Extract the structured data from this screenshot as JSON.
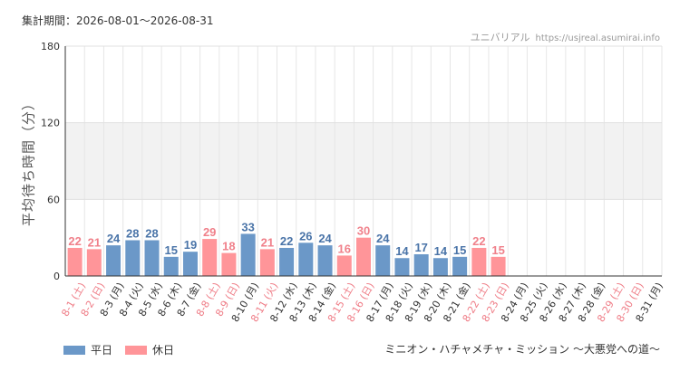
{
  "header": {
    "period_label": "集計期間：2026-08-01～2026-08-31",
    "site_name": "ユニバリアル",
    "site_url": "https://usjreal.asumirai.info"
  },
  "footer": {
    "movie_title": "ミニオン・ハチャメチャ・ミッション ～大悪党への道～"
  },
  "colors": {
    "weekday": "#6b98c8",
    "holiday": "#ff9599",
    "weekday_text": "#4a74a8",
    "holiday_text": "#f0808a",
    "weekday_tick": "#333333",
    "holiday_tick": "#ef7c86"
  },
  "chart_data": {
    "type": "bar",
    "ylabel": "平均待ち時間（分）",
    "ylim": [
      0,
      180
    ],
    "yticks": [
      0,
      60,
      120,
      180
    ],
    "grid": true,
    "shaded_bands": [
      [
        60,
        120
      ]
    ],
    "legend_position": "bottom-left",
    "categories": [
      "8-1 (土)",
      "8-2 (日)",
      "8-3 (月)",
      "8-4 (火)",
      "8-5 (水)",
      "8-6 (木)",
      "8-7 (金)",
      "8-8 (土)",
      "8-9 (日)",
      "8-10 (月)",
      "8-11 (火)",
      "8-12 (水)",
      "8-13 (木)",
      "8-14 (金)",
      "8-15 (土)",
      "8-16 (日)",
      "8-17 (月)",
      "8-18 (火)",
      "8-19 (水)",
      "8-20 (木)",
      "8-21 (金)",
      "8-22 (土)",
      "8-23 (日)",
      "8-24 (月)",
      "8-25 (火)",
      "8-26 (水)",
      "8-27 (木)",
      "8-28 (金)",
      "8-29 (土)",
      "8-30 (日)",
      "8-31 (月)"
    ],
    "values": [
      22,
      21,
      24,
      28,
      28,
      15,
      19,
      29,
      18,
      33,
      21,
      22,
      26,
      24,
      16,
      30,
      24,
      14,
      17,
      14,
      15,
      22,
      15,
      null,
      null,
      null,
      null,
      null,
      null,
      null,
      null
    ],
    "day_type": [
      "holiday",
      "holiday",
      "weekday",
      "weekday",
      "weekday",
      "weekday",
      "weekday",
      "holiday",
      "holiday",
      "weekday",
      "holiday",
      "weekday",
      "weekday",
      "weekday",
      "holiday",
      "holiday",
      "weekday",
      "weekday",
      "weekday",
      "weekday",
      "weekday",
      "holiday",
      "holiday",
      "weekday",
      "weekday",
      "weekday",
      "weekday",
      "weekday",
      "holiday",
      "holiday",
      "weekday"
    ],
    "series": [
      {
        "name": "平日",
        "type": "weekday"
      },
      {
        "name": "休日",
        "type": "holiday"
      }
    ]
  }
}
